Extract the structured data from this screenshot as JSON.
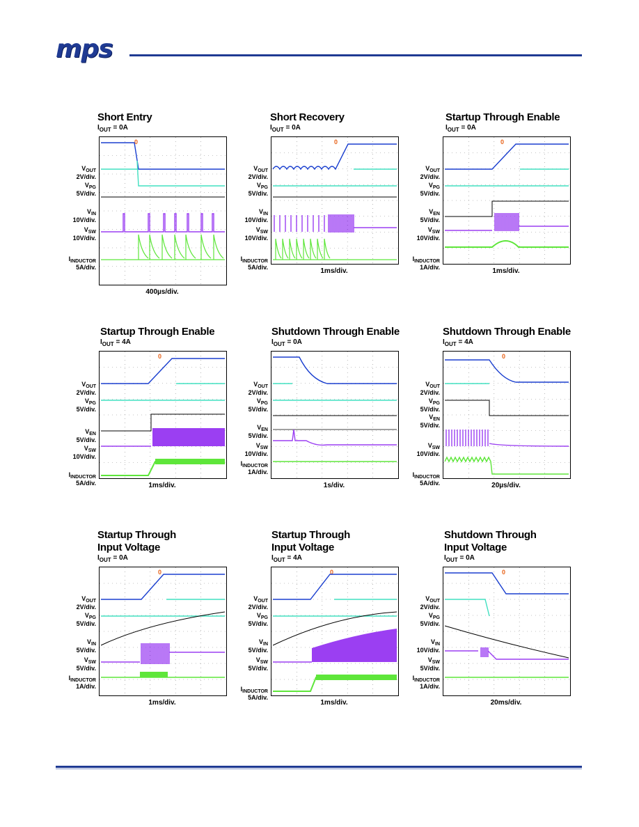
{
  "header": {
    "logo_text": "mps",
    "brand_color": "#1f3a93"
  },
  "panels": [
    {
      "title": "Short Entry",
      "title2": "",
      "condition": {
        "sym": "I",
        "sub": "OUT",
        "rest": " = 0A"
      },
      "timebase": "400µs/div.",
      "channels": [
        {
          "name": "V",
          "sub": "OUT",
          "scale": "2V/div."
        },
        {
          "name": "V",
          "sub": "PG",
          "scale": "5V/div."
        },
        {
          "name": "V",
          "sub": "IN",
          "scale": "10V/div."
        },
        {
          "name": "V",
          "sub": "SW",
          "scale": "10V/div."
        },
        {
          "name": "I",
          "sub": "INDUCTOR",
          "scale": "5A/div."
        }
      ]
    },
    {
      "title": "Short Recovery",
      "title2": "",
      "condition": {
        "sym": "I",
        "sub": "OUT",
        "rest": " = 0A"
      },
      "timebase": "1ms/div.",
      "channels": [
        {
          "name": "V",
          "sub": "OUT",
          "scale": "2V/div."
        },
        {
          "name": "V",
          "sub": "PG",
          "scale": "5V/div."
        },
        {
          "name": "V",
          "sub": "IN",
          "scale": "10V/div."
        },
        {
          "name": "V",
          "sub": "SW",
          "scale": "10V/div."
        },
        {
          "name": "I",
          "sub": "INDUCTOR",
          "scale": "5A/div."
        }
      ]
    },
    {
      "title": "Startup Through Enable",
      "title2": "",
      "condition": {
        "sym": "I",
        "sub": "OUT",
        "rest": " = 0A"
      },
      "timebase": "1ms/div.",
      "channels": [
        {
          "name": "V",
          "sub": "OUT",
          "scale": "2V/div."
        },
        {
          "name": "V",
          "sub": "PG",
          "scale": "5V/div."
        },
        {
          "name": "V",
          "sub": "EN",
          "scale": "5V/div."
        },
        {
          "name": "V",
          "sub": "SW",
          "scale": "10V/div."
        },
        {
          "name": "I",
          "sub": "INDUCTOR",
          "scale": "1A/div."
        }
      ]
    },
    {
      "title": "Startup Through Enable",
      "title2": "",
      "condition": {
        "sym": "I",
        "sub": "OUT",
        "rest": " = 4A"
      },
      "timebase": "1ms/div.",
      "channels": [
        {
          "name": "V",
          "sub": "OUT",
          "scale": "2V/div."
        },
        {
          "name": "V",
          "sub": "PG",
          "scale": "5V/div."
        },
        {
          "name": "V",
          "sub": "EN",
          "scale": "5V/div."
        },
        {
          "name": "V",
          "sub": "SW",
          "scale": "10V/div."
        },
        {
          "name": "I",
          "sub": "INDUCTOR",
          "scale": "5A/div."
        }
      ]
    },
    {
      "title": "Shutdown Through Enable",
      "title2": "",
      "condition": {
        "sym": "I",
        "sub": "OUT",
        "rest": " = 0A"
      },
      "timebase": "1s/div.",
      "channels": [
        {
          "name": "V",
          "sub": "OUT",
          "scale": "2V/div."
        },
        {
          "name": "V",
          "sub": "PG",
          "scale": "5V/div."
        },
        {
          "name": "V",
          "sub": "EN",
          "scale": "5V/div."
        },
        {
          "name": "V",
          "sub": "SW",
          "scale": "10V/div."
        },
        {
          "name": "I",
          "sub": "INDUCTOR",
          "scale": "1A/div."
        }
      ]
    },
    {
      "title": "Shutdown Through Enable",
      "title2": "",
      "condition": {
        "sym": "I",
        "sub": "OUT",
        "rest": " = 4A"
      },
      "timebase": "20µs/div.",
      "channels": [
        {
          "name": "V",
          "sub": "OUT",
          "scale": "2V/div."
        },
        {
          "name": "V",
          "sub": "PG",
          "scale": "5V/div."
        },
        {
          "name": "V",
          "sub": "EN",
          "scale": "5V/div."
        },
        {
          "name": "V",
          "sub": "SW",
          "scale": "10V/div."
        },
        {
          "name": "I",
          "sub": "INDUCTOR",
          "scale": "5A/div."
        }
      ]
    },
    {
      "title": "Startup Through",
      "title2": "Input Voltage",
      "condition": {
        "sym": "I",
        "sub": "OUT",
        "rest": " = 0A"
      },
      "timebase": "1ms/div.",
      "channels": [
        {
          "name": "V",
          "sub": "OUT",
          "scale": "2V/div."
        },
        {
          "name": "V",
          "sub": "PG",
          "scale": "5V/div."
        },
        {
          "name": "V",
          "sub": "IN",
          "scale": "5V/div."
        },
        {
          "name": "V",
          "sub": "SW",
          "scale": "5V/div."
        },
        {
          "name": "I",
          "sub": "INDUCTOR",
          "scale": "1A/div."
        }
      ]
    },
    {
      "title": "Startup Through",
      "title2": "Input Voltage",
      "condition": {
        "sym": "I",
        "sub": "OUT",
        "rest": " = 4A"
      },
      "timebase": "1ms/div.",
      "channels": [
        {
          "name": "V",
          "sub": "OUT",
          "scale": "2V/div."
        },
        {
          "name": "V",
          "sub": "PG",
          "scale": "5V/div."
        },
        {
          "name": "V",
          "sub": "IN",
          "scale": "5V/div."
        },
        {
          "name": "V",
          "sub": "SW",
          "scale": "5V/div."
        },
        {
          "name": "I",
          "sub": "INDUCTOR",
          "scale": "5A/div."
        }
      ]
    },
    {
      "title": "Shutdown Through",
      "title2": "Input Voltage",
      "condition": {
        "sym": "I",
        "sub": "OUT",
        "rest": " = 0A"
      },
      "timebase": "20ms/div.",
      "channels": [
        {
          "name": "V",
          "sub": "OUT",
          "scale": "2V/div."
        },
        {
          "name": "V",
          "sub": "PG",
          "scale": "5V/div."
        },
        {
          "name": "V",
          "sub": "IN",
          "scale": "10V/div."
        },
        {
          "name": "V",
          "sub": "SW",
          "scale": "5V/div."
        },
        {
          "name": "I",
          "sub": "INDUCTOR",
          "scale": "1A/div."
        }
      ]
    }
  ],
  "trace_colors": {
    "vout": "#1a3fcf",
    "vpg": "#40e0c0",
    "vin": "#000000",
    "vsw": "#9b3ff2",
    "il": "#5ee63a"
  }
}
